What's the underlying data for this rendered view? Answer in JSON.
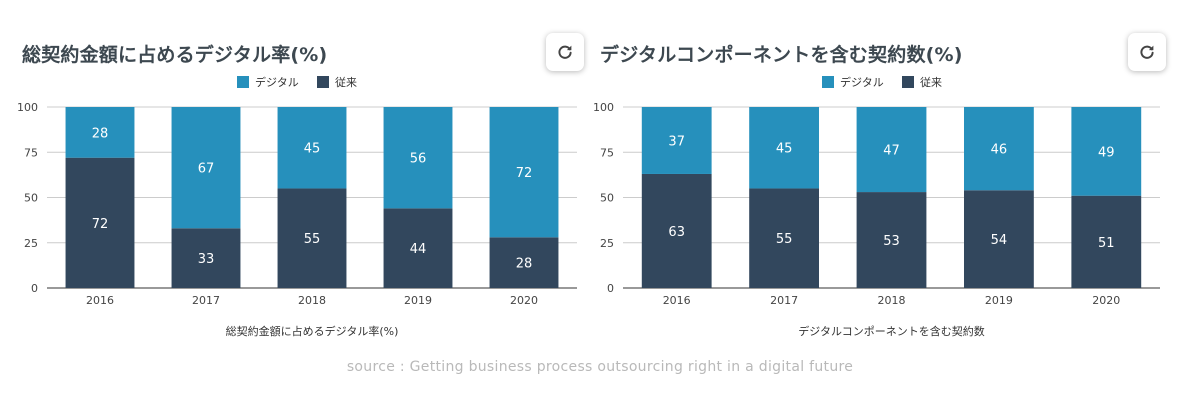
{
  "source": "source : Getting business process outsourcing right in a digital future",
  "refresh_icon": "refresh-icon",
  "colors": {
    "digital": "#2690bc",
    "traditional": "#32475d"
  },
  "chart_data": [
    {
      "type": "bar",
      "stacked": true,
      "title": "総契約金額に占めるデジタル率(%)",
      "xlabel": "総契約金額に占めるデジタル率(%)",
      "ylabel": "",
      "categories": [
        "2016",
        "2017",
        "2018",
        "2019",
        "2020"
      ],
      "series": [
        {
          "name": "従来",
          "color": "#32475d",
          "values": [
            72,
            33,
            55,
            44,
            28
          ]
        },
        {
          "name": "デジタル",
          "color": "#2690bc",
          "values": [
            28,
            67,
            45,
            56,
            72
          ]
        }
      ],
      "legend": [
        "デジタル",
        "従来"
      ],
      "legend_position": "top",
      "ylim": [
        0,
        100
      ],
      "yticks": [
        0,
        25,
        50,
        75,
        100
      ],
      "grid": true
    },
    {
      "type": "bar",
      "stacked": true,
      "title": "デジタルコンポーネントを含む契約数(%)",
      "xlabel": "デジタルコンポーネントを含む契約数",
      "ylabel": "",
      "categories": [
        "2016",
        "2017",
        "2018",
        "2019",
        "2020"
      ],
      "series": [
        {
          "name": "従来",
          "color": "#32475d",
          "values": [
            63,
            55,
            53,
            54,
            51
          ]
        },
        {
          "name": "デジタル",
          "color": "#2690bc",
          "values": [
            37,
            45,
            47,
            46,
            49
          ]
        }
      ],
      "legend": [
        "デジタル",
        "従来"
      ],
      "legend_position": "top",
      "ylim": [
        0,
        100
      ],
      "yticks": [
        0,
        25,
        50,
        75,
        100
      ],
      "grid": true
    }
  ]
}
